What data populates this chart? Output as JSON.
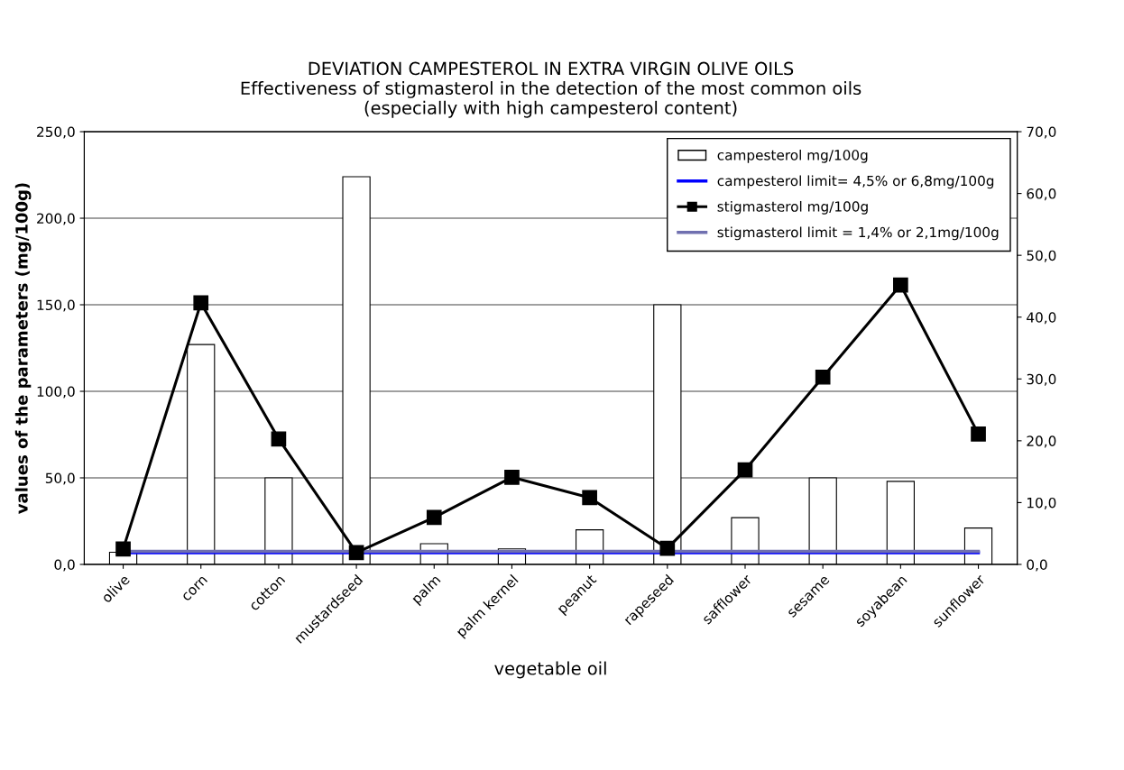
{
  "chart_data": {
    "type": "bar",
    "title": "DEVIATION CAMPESTEROL IN EXTRA VIRGIN OLIVE OILS\nEffectiveness of stigmasterol in the detection of the most common oils\n(especially with high campesterol content)",
    "xlabel": "vegetable oil",
    "ylabel": "values of the parameters (mg/100g)",
    "categories": [
      "olive",
      "corn",
      "cotton",
      "mustardseed",
      "palm",
      "palm kernel",
      "peanut",
      "rapeseed",
      "safflower",
      "sesame",
      "soyabean",
      "sunflower"
    ],
    "series": [
      {
        "name": "campesterol mg/100g",
        "type": "bar",
        "color": "#ffffff",
        "values": [
          7,
          127,
          50,
          224,
          12,
          9,
          20,
          150,
          27,
          50,
          48,
          21
        ]
      },
      {
        "name": "stigmasterol mg/100g",
        "type": "line",
        "axis": "y2",
        "color": "#000000",
        "marker": "square",
        "values": [
          2.5,
          42.3,
          20.3,
          1.9,
          7.6,
          14.1,
          10.8,
          2.6,
          15.3,
          30.3,
          45.2,
          21.1
        ]
      }
    ],
    "ref_lines": [
      {
        "axis": "y",
        "value": 6.8,
        "label": "campesterol limit= 4,5% or 6,8mg/100g",
        "color": "#0000ff"
      },
      {
        "axis": "y2",
        "value": 2.1,
        "label": "stigmasterol limit = 1,4% or 2,1mg/100g",
        "color": "#7070b0"
      }
    ],
    "ylim": [
      0,
      250
    ],
    "yticks": [
      {
        "value": 0,
        "label": "0,0"
      },
      {
        "value": 50,
        "label": "50,0"
      },
      {
        "value": 100,
        "label": "100,0"
      },
      {
        "value": 150,
        "label": "150,0"
      },
      {
        "value": 200,
        "label": "200,0"
      },
      {
        "value": 250,
        "label": "250,0"
      }
    ],
    "y2lim": [
      0,
      70
    ],
    "y2ticks": [
      {
        "value": 0,
        "label": "0,0"
      },
      {
        "value": 10,
        "label": "10,0"
      },
      {
        "value": 20,
        "label": "20,0"
      },
      {
        "value": 30,
        "label": "30,0"
      },
      {
        "value": 40,
        "label": "40,0"
      },
      {
        "value": 50,
        "label": "50,0"
      },
      {
        "value": 60,
        "label": "60,0"
      },
      {
        "value": 70,
        "label": "70,0"
      }
    ],
    "grid": "y",
    "legend": "top right"
  }
}
